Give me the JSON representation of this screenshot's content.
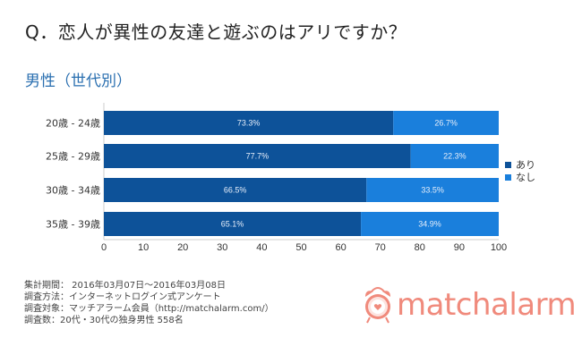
{
  "question": "Q．恋人が異性の友達と遊ぶのはアリですか？",
  "subtitle": "男性（世代別）",
  "chart_data": {
    "type": "bar",
    "orientation": "horizontal",
    "stacked": true,
    "categories": [
      "20歳 - 24歳",
      "25歳 - 29歳",
      "30歳 - 34歳",
      "35歳 - 39歳"
    ],
    "series": [
      {
        "name": "あり",
        "values": [
          73.3,
          77.7,
          66.5,
          65.1
        ],
        "labels": [
          "73.3%",
          "77.7%",
          "66.5%",
          "65.1%"
        ],
        "color": "#0d5299"
      },
      {
        "name": "なし",
        "values": [
          26.7,
          22.3,
          33.5,
          34.9
        ],
        "labels": [
          "26.7%",
          "22.3%",
          "33.5%",
          "34.9%"
        ],
        "color": "#1a7fdc"
      }
    ],
    "xlim": [
      0,
      100
    ],
    "xticks": [
      "0",
      "10",
      "20",
      "30",
      "40",
      "50",
      "60",
      "70",
      "80",
      "90",
      "100"
    ],
    "legend_position": "right",
    "grid": false
  },
  "notes": [
    "集計期間： 2016年03月07日～2016年03月08日",
    "調査方法：インターネットログイン式アンケート",
    "調査対象：マッチアラーム会員（http://matchalarm.com/）",
    "調査数：20代・30代の独身男性 558名"
  ],
  "logo": {
    "text": "matchalarm",
    "color": "#f08a7c",
    "icon": "alarm-clock-heart-icon"
  }
}
